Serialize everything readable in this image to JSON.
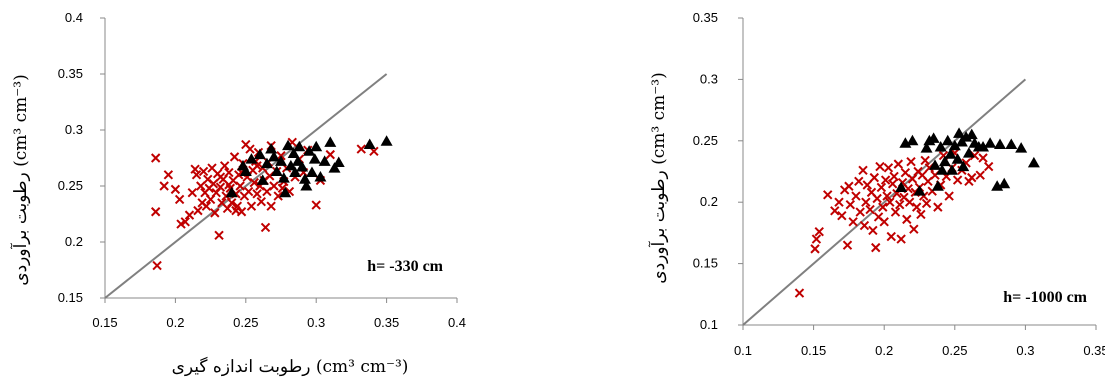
{
  "chart_data": [
    {
      "type": "scatter",
      "title": "",
      "annotation": "h= -330 cm",
      "xlabel": "رطوبت اندازه گیری (cm³ cm⁻³)",
      "ylabel": "رطوبت برآوردی (cm³ cm⁻³)",
      "xlim": [
        0.15,
        0.4
      ],
      "ylim": [
        0.15,
        0.4
      ],
      "x_ticks": [
        "0.15",
        "0.2",
        "0.25",
        "0.3",
        "0.35",
        "0.4"
      ],
      "y_ticks": [
        "0.15",
        "0.2",
        "0.25",
        "0.3",
        "0.35",
        "0.4"
      ],
      "one_to_one_line": {
        "from": [
          0.15,
          0.15
        ],
        "to": [
          0.35,
          0.35
        ],
        "color": "#808080"
      },
      "series": [
        {
          "marker": "x",
          "color": "#c00000",
          "points": [
            [
              0.186,
              0.275
            ],
            [
              0.186,
              0.227
            ],
            [
              0.187,
              0.179
            ],
            [
              0.192,
              0.25
            ],
            [
              0.195,
              0.26
            ],
            [
              0.2,
              0.247
            ],
            [
              0.203,
              0.238
            ],
            [
              0.204,
              0.216
            ],
            [
              0.207,
              0.218
            ],
            [
              0.21,
              0.224
            ],
            [
              0.212,
              0.244
            ],
            [
              0.214,
              0.265
            ],
            [
              0.215,
              0.26
            ],
            [
              0.216,
              0.228
            ],
            [
              0.218,
              0.25
            ],
            [
              0.219,
              0.235
            ],
            [
              0.22,
              0.263
            ],
            [
              0.221,
              0.244
            ],
            [
              0.223,
              0.256
            ],
            [
              0.224,
              0.248
            ],
            [
              0.225,
              0.238
            ],
            [
              0.226,
              0.266
            ],
            [
              0.227,
              0.252
            ],
            [
              0.228,
              0.226
            ],
            [
              0.229,
              0.244
            ],
            [
              0.23,
              0.261
            ],
            [
              0.231,
              0.206
            ],
            [
              0.232,
              0.249
            ],
            [
              0.233,
              0.235
            ],
            [
              0.234,
              0.256
            ],
            [
              0.235,
              0.268
            ],
            [
              0.236,
              0.241
            ],
            [
              0.237,
              0.23
            ],
            [
              0.238,
              0.262
            ],
            [
              0.239,
              0.248
            ],
            [
              0.24,
              0.235
            ],
            [
              0.241,
              0.255
            ],
            [
              0.242,
              0.276
            ],
            [
              0.243,
              0.243
            ],
            [
              0.244,
              0.232
            ],
            [
              0.245,
              0.26
            ],
            [
              0.246,
              0.25
            ],
            [
              0.247,
              0.227
            ],
            [
              0.248,
              0.27
            ],
            [
              0.249,
              0.241
            ],
            [
              0.25,
              0.287
            ],
            [
              0.251,
              0.258
            ],
            [
              0.252,
              0.245
            ],
            [
              0.253,
              0.283
            ],
            [
              0.254,
              0.232
            ],
            [
              0.255,
              0.264
            ],
            [
              0.256,
              0.253
            ],
            [
              0.257,
              0.272
            ],
            [
              0.258,
              0.243
            ],
            [
              0.259,
              0.28
            ],
            [
              0.26,
              0.25
            ],
            [
              0.261,
              0.236
            ],
            [
              0.262,
              0.266
            ],
            [
              0.263,
              0.255
            ],
            [
              0.264,
              0.213
            ],
            [
              0.265,
              0.245
            ],
            [
              0.266,
              0.271
            ],
            [
              0.267,
              0.259
            ],
            [
              0.268,
              0.232
            ],
            [
              0.27,
              0.25
            ],
            [
              0.272,
              0.263
            ],
            [
              0.273,
              0.241
            ],
            [
              0.275,
              0.277
            ],
            [
              0.277,
              0.254
            ],
            [
              0.279,
              0.266
            ],
            [
              0.281,
              0.245
            ],
            [
              0.283,
              0.289
            ],
            [
              0.285,
              0.258
            ],
            [
              0.288,
              0.274
            ],
            [
              0.291,
              0.262
            ],
            [
              0.294,
              0.282
            ],
            [
              0.3,
              0.233
            ],
            [
              0.303,
              0.255
            ],
            [
              0.31,
              0.278
            ],
            [
              0.332,
              0.283
            ],
            [
              0.341,
              0.281
            ],
            [
              0.222,
              0.232
            ],
            [
              0.238,
              0.251
            ],
            [
              0.247,
              0.262
            ],
            [
              0.258,
              0.268
            ],
            [
              0.243,
              0.228
            ],
            [
              0.232,
              0.258
            ],
            [
              0.268,
              0.286
            ],
            [
              0.276,
              0.248
            ]
          ]
        },
        {
          "marker": "triangle",
          "color": "#000000",
          "points": [
            [
              0.24,
              0.244
            ],
            [
              0.248,
              0.268
            ],
            [
              0.25,
              0.263
            ],
            [
              0.254,
              0.274
            ],
            [
              0.26,
              0.278
            ],
            [
              0.262,
              0.255
            ],
            [
              0.265,
              0.27
            ],
            [
              0.268,
              0.283
            ],
            [
              0.27,
              0.276
            ],
            [
              0.272,
              0.263
            ],
            [
              0.275,
              0.272
            ],
            [
              0.277,
              0.257
            ],
            [
              0.278,
              0.244
            ],
            [
              0.28,
              0.286
            ],
            [
              0.282,
              0.268
            ],
            [
              0.284,
              0.279
            ],
            [
              0.285,
              0.262
            ],
            [
              0.287,
              0.272
            ],
            [
              0.288,
              0.285
            ],
            [
              0.29,
              0.267
            ],
            [
              0.292,
              0.256
            ],
            [
              0.293,
              0.25
            ],
            [
              0.295,
              0.281
            ],
            [
              0.297,
              0.262
            ],
            [
              0.299,
              0.274
            ],
            [
              0.3,
              0.285
            ],
            [
              0.303,
              0.258
            ],
            [
              0.306,
              0.272
            ],
            [
              0.31,
              0.289
            ],
            [
              0.313,
              0.266
            ],
            [
              0.316,
              0.271
            ],
            [
              0.338,
              0.287
            ],
            [
              0.35,
              0.29
            ]
          ]
        }
      ]
    },
    {
      "type": "scatter",
      "title": "",
      "annotation": "h= -1000 cm",
      "xlabel": "",
      "ylabel": "رطوبت برآوردی (cm³ cm⁻³)",
      "xlim": [
        0.1,
        0.35
      ],
      "ylim": [
        0.1,
        0.35
      ],
      "x_ticks": [
        "0.1",
        "0.15",
        "0.2",
        "0.25",
        "0.3",
        "0.35"
      ],
      "y_ticks": [
        "0.1",
        "0.15",
        "0.2",
        "0.25",
        "0.3",
        "0.35"
      ],
      "one_to_one_line": {
        "from": [
          0.1,
          0.1
        ],
        "to": [
          0.3,
          0.3
        ],
        "color": "#808080"
      },
      "series": [
        {
          "marker": "x",
          "color": "#c00000",
          "points": [
            [
              0.14,
              0.126
            ],
            [
              0.151,
              0.162
            ],
            [
              0.152,
              0.17
            ],
            [
              0.154,
              0.176
            ],
            [
              0.16,
              0.206
            ],
            [
              0.165,
              0.193
            ],
            [
              0.168,
              0.2
            ],
            [
              0.17,
              0.189
            ],
            [
              0.172,
              0.21
            ],
            [
              0.174,
              0.165
            ],
            [
              0.175,
              0.213
            ],
            [
              0.176,
              0.198
            ],
            [
              0.178,
              0.184
            ],
            [
              0.18,
              0.205
            ],
            [
              0.182,
              0.217
            ],
            [
              0.183,
              0.192
            ],
            [
              0.185,
              0.226
            ],
            [
              0.186,
              0.181
            ],
            [
              0.187,
              0.2
            ],
            [
              0.188,
              0.214
            ],
            [
              0.19,
              0.194
            ],
            [
              0.191,
              0.208
            ],
            [
              0.192,
              0.177
            ],
            [
              0.193,
              0.22
            ],
            [
              0.194,
              0.163
            ],
            [
              0.195,
              0.203
            ],
            [
              0.196,
              0.188
            ],
            [
              0.197,
              0.229
            ],
            [
              0.198,
              0.212
            ],
            [
              0.199,
              0.196
            ],
            [
              0.2,
              0.184
            ],
            [
              0.201,
              0.218
            ],
            [
              0.202,
              0.205
            ],
            [
              0.203,
              0.228
            ],
            [
              0.204,
              0.2
            ],
            [
              0.205,
              0.172
            ],
            [
              0.206,
              0.215
            ],
            [
              0.207,
              0.221
            ],
            [
              0.208,
              0.192
            ],
            [
              0.209,
              0.207
            ],
            [
              0.21,
              0.231
            ],
            [
              0.211,
              0.198
            ],
            [
              0.212,
              0.17
            ],
            [
              0.213,
              0.216
            ],
            [
              0.214,
              0.204
            ],
            [
              0.215,
              0.224
            ],
            [
              0.216,
              0.186
            ],
            [
              0.217,
              0.211
            ],
            [
              0.218,
              0.2
            ],
            [
              0.219,
              0.233
            ],
            [
              0.22,
              0.219
            ],
            [
              0.221,
              0.178
            ],
            [
              0.222,
              0.208
            ],
            [
              0.223,
              0.196
            ],
            [
              0.224,
              0.225
            ],
            [
              0.225,
              0.212
            ],
            [
              0.226,
              0.19
            ],
            [
              0.227,
              0.222
            ],
            [
              0.228,
              0.205
            ],
            [
              0.229,
              0.234
            ],
            [
              0.23,
              0.199
            ],
            [
              0.231,
              0.217
            ],
            [
              0.232,
              0.228
            ],
            [
              0.234,
              0.209
            ],
            [
              0.236,
              0.222
            ],
            [
              0.238,
              0.196
            ],
            [
              0.24,
              0.214
            ],
            [
              0.242,
              0.238
            ],
            [
              0.244,
              0.221
            ],
            [
              0.246,
              0.205
            ],
            [
              0.248,
              0.228
            ],
            [
              0.25,
              0.24
            ],
            [
              0.252,
              0.218
            ],
            [
              0.255,
              0.226
            ],
            [
              0.258,
              0.232
            ],
            [
              0.26,
              0.217
            ],
            [
              0.262,
              0.22
            ],
            [
              0.264,
              0.238
            ],
            [
              0.268,
              0.222
            ],
            [
              0.27,
              0.236
            ],
            [
              0.274,
              0.229
            ]
          ]
        },
        {
          "marker": "triangle",
          "color": "#000000",
          "points": [
            [
              0.212,
              0.212
            ],
            [
              0.215,
              0.248
            ],
            [
              0.22,
              0.25
            ],
            [
              0.225,
              0.209
            ],
            [
              0.23,
              0.244
            ],
            [
              0.232,
              0.25
            ],
            [
              0.235,
              0.252
            ],
            [
              0.236,
              0.23
            ],
            [
              0.238,
              0.213
            ],
            [
              0.24,
              0.245
            ],
            [
              0.241,
              0.226
            ],
            [
              0.243,
              0.233
            ],
            [
              0.245,
              0.25
            ],
            [
              0.247,
              0.239
            ],
            [
              0.248,
              0.226
            ],
            [
              0.25,
              0.246
            ],
            [
              0.252,
              0.235
            ],
            [
              0.253,
              0.256
            ],
            [
              0.255,
              0.249
            ],
            [
              0.256,
              0.229
            ],
            [
              0.258,
              0.253
            ],
            [
              0.26,
              0.24
            ],
            [
              0.262,
              0.255
            ],
            [
              0.264,
              0.248
            ],
            [
              0.267,
              0.245
            ],
            [
              0.27,
              0.245
            ],
            [
              0.275,
              0.248
            ],
            [
              0.28,
              0.213
            ],
            [
              0.282,
              0.247
            ],
            [
              0.285,
              0.215
            ],
            [
              0.29,
              0.247
            ],
            [
              0.297,
              0.244
            ],
            [
              0.306,
              0.232
            ]
          ]
        }
      ]
    }
  ]
}
